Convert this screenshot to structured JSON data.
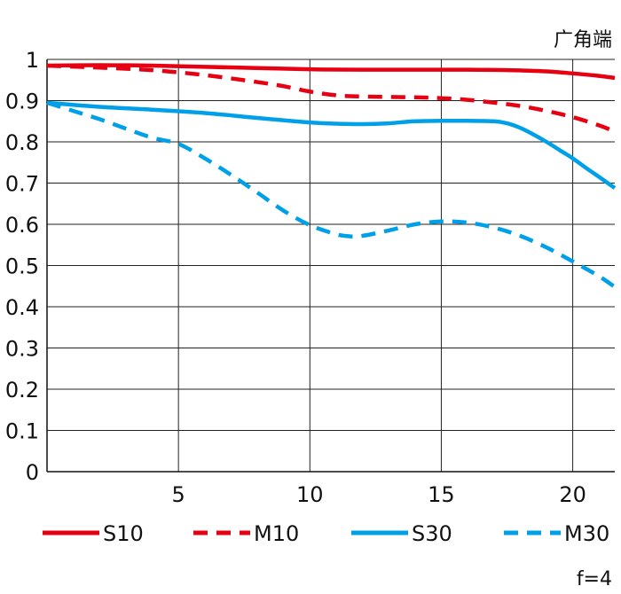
{
  "chart_data": {
    "type": "line",
    "title": "广角端",
    "footnote": "f=4",
    "xlabel": "",
    "ylabel": "",
    "xlim": [
      0,
      21.6
    ],
    "ylim": [
      0,
      1
    ],
    "x_ticks": [
      5,
      10,
      15,
      20
    ],
    "y_ticks": [
      0,
      0.1,
      0.2,
      0.3,
      0.4,
      0.5,
      0.6,
      0.7,
      0.8,
      0.9,
      1
    ],
    "y_tick_labels": [
      "0",
      "0.1",
      "0.2",
      "0.3",
      "0.4",
      "0.5",
      "0.6",
      "0.7",
      "0.8",
      "0.9",
      "1"
    ],
    "grid": true,
    "legend_position": "bottom",
    "series": [
      {
        "name": "S10",
        "color": "#e60012",
        "dash": "solid",
        "x": [
          0,
          2,
          4,
          6,
          8,
          10,
          12,
          14,
          16,
          17.5,
          19,
          20,
          21,
          21.6
        ],
        "y": [
          0.985,
          0.986,
          0.985,
          0.982,
          0.979,
          0.976,
          0.975,
          0.975,
          0.975,
          0.974,
          0.971,
          0.966,
          0.96,
          0.955
        ]
      },
      {
        "name": "M10",
        "color": "#e60012",
        "dash": "dashed",
        "x": [
          0,
          2,
          4,
          6,
          8,
          9,
          10,
          11,
          12,
          14,
          15,
          16,
          17,
          18,
          19,
          20,
          21,
          21.6
        ],
        "y": [
          0.985,
          0.98,
          0.974,
          0.962,
          0.945,
          0.935,
          0.922,
          0.913,
          0.91,
          0.908,
          0.906,
          0.902,
          0.895,
          0.887,
          0.875,
          0.86,
          0.84,
          0.825
        ]
      },
      {
        "name": "S30",
        "color": "#00a0e9",
        "dash": "solid",
        "x": [
          0,
          2,
          4,
          6,
          8,
          10,
          11,
          12,
          13,
          14,
          15,
          16,
          17,
          17.5,
          18,
          18.5,
          19,
          19.5,
          20,
          20.5,
          21,
          21.6
        ],
        "y": [
          0.895,
          0.885,
          0.878,
          0.87,
          0.858,
          0.847,
          0.844,
          0.843,
          0.845,
          0.85,
          0.851,
          0.851,
          0.85,
          0.845,
          0.834,
          0.818,
          0.8,
          0.78,
          0.76,
          0.737,
          0.715,
          0.688
        ]
      },
      {
        "name": "M30",
        "color": "#00a0e9",
        "dash": "dashed",
        "x": [
          0,
          1,
          2,
          3,
          4,
          5,
          6,
          7,
          8,
          9,
          10,
          11,
          11.5,
          12,
          13,
          14,
          15,
          16,
          17,
          18,
          19,
          20,
          21,
          21.6
        ],
        "y": [
          0.895,
          0.875,
          0.855,
          0.832,
          0.81,
          0.795,
          0.76,
          0.72,
          0.677,
          0.633,
          0.598,
          0.576,
          0.571,
          0.572,
          0.585,
          0.6,
          0.607,
          0.604,
          0.592,
          0.572,
          0.544,
          0.51,
          0.474,
          0.448
        ]
      }
    ]
  }
}
